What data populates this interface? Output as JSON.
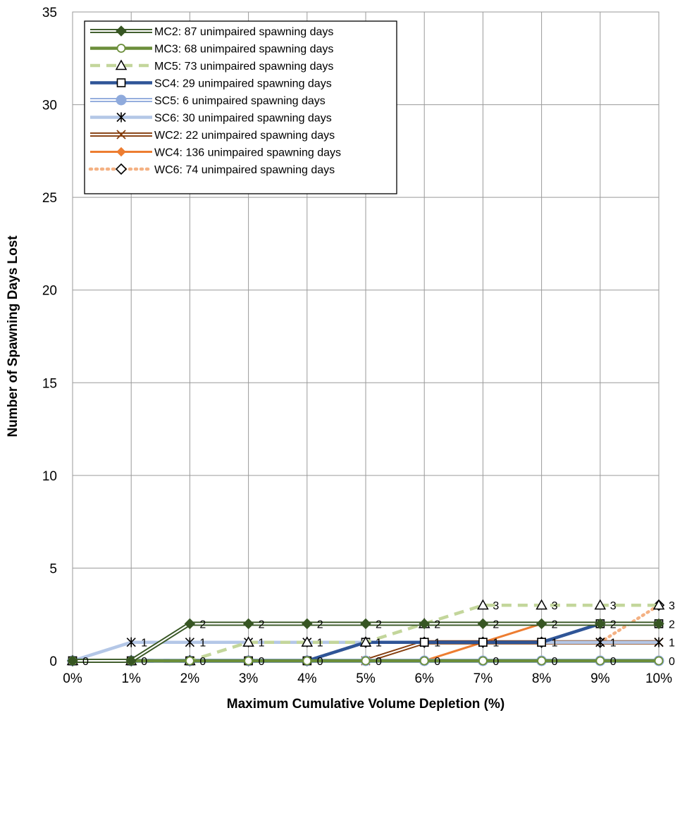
{
  "chart_data": {
    "type": "line",
    "title": "",
    "xlabel": "Maximum Cumulative Volume Depletion (%)",
    "ylabel": "Number of Spawning Days Lost",
    "x": [
      0,
      1,
      2,
      3,
      4,
      5,
      6,
      7,
      8,
      9,
      10
    ],
    "x_tick_labels": [
      "0%",
      "1%",
      "2%",
      "3%",
      "4%",
      "5%",
      "6%",
      "7%",
      "8%",
      "9%",
      "10%"
    ],
    "ylim": [
      0,
      35
    ],
    "y_ticks": [
      0,
      5,
      10,
      15,
      20,
      25,
      30,
      35
    ],
    "grid": true,
    "legend_position": "top-left",
    "series": [
      {
        "name": "MC2: 87 unimpaired spawning days",
        "values": [
          0,
          0,
          2,
          2,
          2,
          2,
          2,
          2,
          2,
          2,
          2
        ],
        "color": "#375623",
        "style": "double",
        "marker": "diamond-filled",
        "labels": false
      },
      {
        "name": "MC3: 68 unimpaired spawning days",
        "values": [
          0,
          0,
          0,
          0,
          0,
          0,
          0,
          0,
          0,
          0,
          0
        ],
        "color": "#6B8E3A",
        "style": "solid-thick",
        "marker": "circle-open",
        "labels": false
      },
      {
        "name": "MC5: 73 unimpaired spawning days",
        "values": [
          0,
          0,
          0,
          1,
          1,
          1,
          2,
          3,
          3,
          3,
          3
        ],
        "color": "#C3D69B",
        "style": "dashed",
        "marker": "triangle-open",
        "labels": false
      },
      {
        "name": "SC4: 29 unimpaired spawning days",
        "values": [
          0,
          0,
          0,
          0,
          0,
          1,
          1,
          1,
          1,
          2,
          2
        ],
        "color": "#2F5597",
        "style": "solid-thick",
        "marker": "square-open",
        "labels": false
      },
      {
        "name": "SC5: 6 unimpaired spawning days",
        "values": [
          0,
          0,
          0,
          0,
          0,
          0,
          0,
          0,
          0,
          0,
          0
        ],
        "color": "#8FAADC",
        "style": "double",
        "marker": "circle-filled",
        "labels": false
      },
      {
        "name": "SC6: 30 unimpaired spawning days",
        "values": [
          0,
          1,
          1,
          1,
          1,
          1,
          1,
          1,
          1,
          1,
          1
        ],
        "color": "#B4C7E7",
        "style": "solid-thick",
        "marker": "star",
        "labels": false
      },
      {
        "name": "WC2: 22 unimpaired spawning days",
        "values": [
          0,
          0,
          0,
          0,
          0,
          0,
          1,
          1,
          1,
          1,
          1
        ],
        "color": "#843C0C",
        "style": "double",
        "marker": "x",
        "labels": false
      },
      {
        "name": "WC4: 136 unimpaired spawning days",
        "values": [
          0,
          0,
          0,
          0,
          0,
          0,
          0,
          1,
          2,
          2,
          2
        ],
        "color": "#ED7D31",
        "style": "solid",
        "marker": "diamond-small",
        "labels": false
      },
      {
        "name": "WC6: 74 unimpaired spawning days",
        "values": [
          0,
          0,
          0,
          0,
          0,
          1,
          1,
          1,
          1,
          1,
          3
        ],
        "color": "#F4B183",
        "style": "dotted",
        "marker": "diamond-open",
        "labels": false
      }
    ],
    "data_labels": [
      {
        "x": 0,
        "y": 0,
        "text": "0"
      },
      {
        "x": 1,
        "y": 1,
        "text": "1"
      },
      {
        "x": 1,
        "y": 0,
        "text": "0"
      },
      {
        "x": 2,
        "y": 2,
        "text": "2"
      },
      {
        "x": 2,
        "y": 1,
        "text": "1"
      },
      {
        "x": 2,
        "y": 0,
        "text": "0"
      },
      {
        "x": 3,
        "y": 2,
        "text": "2"
      },
      {
        "x": 3,
        "y": 1,
        "text": "1"
      },
      {
        "x": 3,
        "y": 0,
        "text": "0"
      },
      {
        "x": 4,
        "y": 2,
        "text": "2"
      },
      {
        "x": 4,
        "y": 1,
        "text": "1"
      },
      {
        "x": 4,
        "y": 0,
        "text": "0"
      },
      {
        "x": 5,
        "y": 2,
        "text": "2"
      },
      {
        "x": 5,
        "y": 1,
        "text": "1"
      },
      {
        "x": 5,
        "y": 0,
        "text": "0"
      },
      {
        "x": 6,
        "y": 2,
        "text": "2"
      },
      {
        "x": 6,
        "y": 1,
        "text": "1"
      },
      {
        "x": 6,
        "y": 0,
        "text": "0"
      },
      {
        "x": 7,
        "y": 3,
        "text": "3"
      },
      {
        "x": 7,
        "y": 2,
        "text": "2"
      },
      {
        "x": 7,
        "y": 1,
        "text": "1"
      },
      {
        "x": 7,
        "y": 0,
        "text": "0"
      },
      {
        "x": 8,
        "y": 3,
        "text": "3"
      },
      {
        "x": 8,
        "y": 2,
        "text": "2"
      },
      {
        "x": 8,
        "y": 1,
        "text": "1"
      },
      {
        "x": 8,
        "y": 0,
        "text": "0"
      },
      {
        "x": 9,
        "y": 3,
        "text": "3"
      },
      {
        "x": 9,
        "y": 2,
        "text": "2"
      },
      {
        "x": 9,
        "y": 1,
        "text": "1"
      },
      {
        "x": 9,
        "y": 0,
        "text": "0"
      },
      {
        "x": 10,
        "y": 3,
        "text": "3"
      },
      {
        "x": 10,
        "y": 2,
        "text": "2"
      },
      {
        "x": 10,
        "y": 1,
        "text": "1"
      },
      {
        "x": 10,
        "y": 0,
        "text": "0"
      }
    ]
  }
}
